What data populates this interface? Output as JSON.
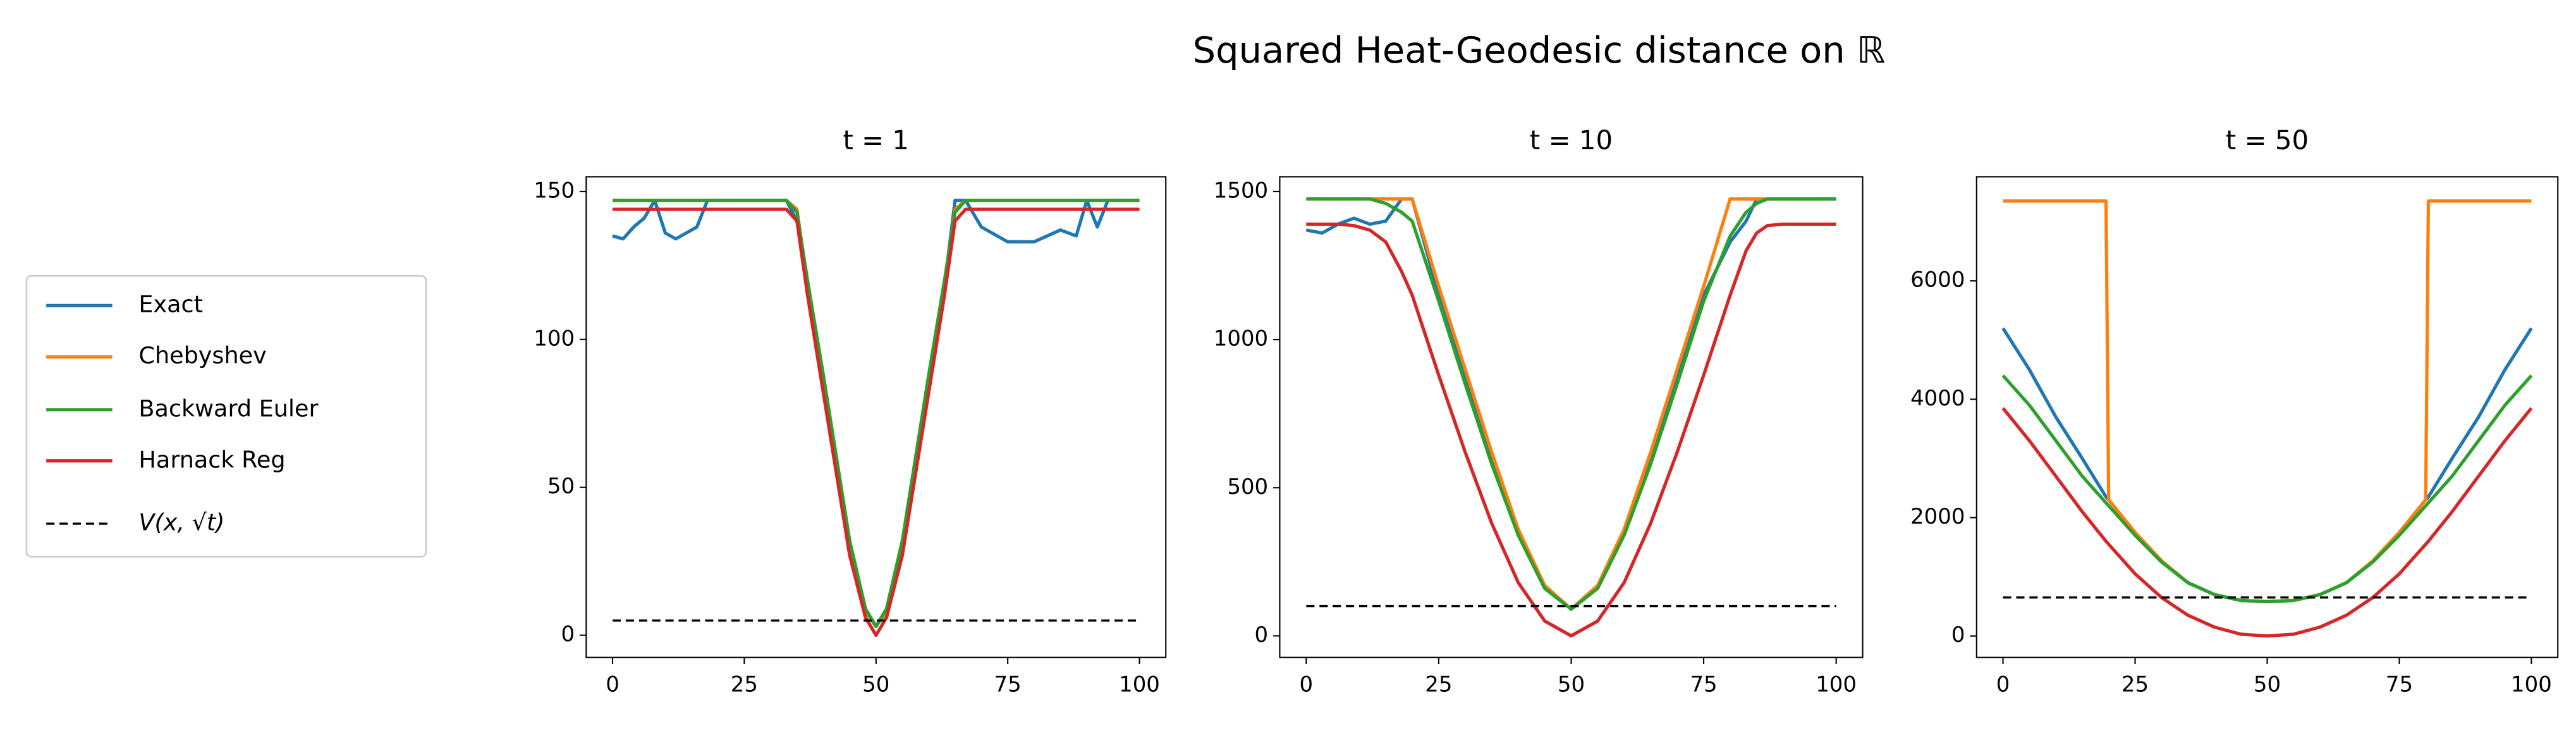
{
  "title": "Squared Heat-Geodesic distance on ℝ",
  "chart_data": [
    {
      "type": "line",
      "title": "t = 1",
      "legend": "left",
      "x": [
        0,
        2,
        4,
        6,
        8,
        10,
        12,
        14,
        16,
        18,
        25,
        33,
        35,
        37,
        40,
        45,
        48,
        50,
        52,
        55,
        60,
        63,
        65,
        67,
        70,
        75,
        80,
        85,
        88,
        90,
        92,
        94,
        96,
        98,
        100
      ],
      "xlim": [
        -5,
        105
      ],
      "xticks": [
        0,
        25,
        50,
        75,
        100
      ],
      "ylim": [
        -7.5,
        155
      ],
      "yticks": [
        0,
        50,
        100,
        150
      ],
      "series": [
        {
          "name": "Exact",
          "color": "#1f77b4",
          "values": [
            135,
            134,
            138,
            141,
            147,
            136,
            134,
            136,
            138,
            147,
            147,
            147,
            140,
            118,
            85,
            30,
            8,
            3,
            8,
            30,
            85,
            118,
            147,
            147,
            138,
            133,
            133,
            137,
            135,
            147,
            138,
            147,
            147,
            147,
            147
          ]
        },
        {
          "name": "Chebyshev",
          "color": "#ff7f0e",
          "values": [
            147,
            147,
            147,
            147,
            147,
            147,
            147,
            147,
            147,
            147,
            147,
            147,
            144,
            118,
            85,
            30,
            8,
            3,
            8,
            30,
            85,
            118,
            144,
            147,
            147,
            147,
            147,
            147,
            147,
            147,
            147,
            147,
            147,
            147,
            147
          ]
        },
        {
          "name": "Backward Euler",
          "color": "#2ca02c",
          "values": [
            147,
            147,
            147,
            147,
            147,
            147,
            147,
            147,
            147,
            147,
            147,
            147,
            143,
            120,
            88,
            32,
            9,
            3,
            9,
            32,
            88,
            120,
            143,
            147,
            147,
            147,
            147,
            147,
            147,
            147,
            147,
            147,
            147,
            147,
            147
          ]
        },
        {
          "name": "Harnack Reg",
          "color": "#d62728",
          "values": [
            144,
            144,
            144,
            144,
            144,
            144,
            144,
            144,
            144,
            144,
            144,
            144,
            140,
            115,
            82,
            27,
            6,
            0,
            6,
            27,
            82,
            115,
            140,
            144,
            144,
            144,
            144,
            144,
            144,
            144,
            144,
            144,
            144,
            144,
            144
          ]
        },
        {
          "name": "V(x, √t)",
          "color": "#000000",
          "linestyle": "dashed",
          "values": [
            5,
            5,
            5,
            5,
            5,
            5,
            5,
            5,
            5,
            5,
            5,
            5,
            5,
            5,
            5,
            5,
            5,
            5,
            5,
            5,
            5,
            5,
            5,
            5,
            5,
            5,
            5,
            5,
            5,
            5,
            5,
            5,
            5,
            5,
            5
          ]
        }
      ]
    },
    {
      "type": "line",
      "title": "t = 10",
      "x": [
        0,
        3,
        6,
        9,
        12,
        15,
        18,
        20,
        25,
        30,
        35,
        40,
        45,
        50,
        55,
        60,
        65,
        70,
        75,
        80,
        83,
        85,
        87,
        90,
        95,
        100
      ],
      "xlim": [
        -5,
        105
      ],
      "xticks": [
        0,
        25,
        50,
        75,
        100
      ],
      "ylim": [
        -73,
        1550
      ],
      "yticks": [
        0,
        500,
        1000,
        1500
      ],
      "series": [
        {
          "color": "#1f77b4",
          "values": [
            1370,
            1360,
            1390,
            1410,
            1390,
            1400,
            1475,
            1475,
            1150,
            870,
            600,
            350,
            170,
            90,
            170,
            350,
            600,
            870,
            1150,
            1330,
            1400,
            1475,
            1475,
            1475,
            1475,
            1475
          ]
        },
        {
          "color": "#ff7f0e",
          "values": [
            1475,
            1475,
            1475,
            1475,
            1475,
            1475,
            1475,
            1475,
            1180,
            900,
            620,
            360,
            170,
            90,
            170,
            360,
            620,
            900,
            1180,
            1475,
            1475,
            1475,
            1475,
            1475,
            1475,
            1475
          ]
        },
        {
          "color": "#2ca02c",
          "values": [
            1475,
            1475,
            1475,
            1475,
            1475,
            1460,
            1430,
            1400,
            1130,
            850,
            580,
            340,
            160,
            90,
            160,
            340,
            580,
            850,
            1130,
            1350,
            1430,
            1460,
            1475,
            1475,
            1475,
            1475
          ]
        },
        {
          "color": "#d62728",
          "values": [
            1390,
            1390,
            1390,
            1385,
            1370,
            1330,
            1230,
            1150,
            880,
            620,
            380,
            180,
            50,
            0,
            50,
            180,
            380,
            620,
            880,
            1150,
            1300,
            1360,
            1385,
            1390,
            1390,
            1390
          ]
        },
        {
          "color": "#000000",
          "linestyle": "dashed",
          "values": [
            100,
            100,
            100,
            100,
            100,
            100,
            100,
            100,
            100,
            100,
            100,
            100,
            100,
            100,
            100,
            100,
            100,
            100,
            100,
            100,
            100,
            100,
            100,
            100,
            100,
            100
          ]
        }
      ]
    },
    {
      "type": "line",
      "title": "t = 50",
      "x": [
        0,
        5,
        10,
        15,
        19.5,
        20,
        25,
        30,
        35,
        40,
        45,
        50,
        55,
        60,
        65,
        70,
        75,
        80,
        80.5,
        85,
        90,
        95,
        100
      ],
      "xlim": [
        -5,
        105
      ],
      "xticks": [
        0,
        25,
        50,
        75,
        100
      ],
      "ylim": [
        -363,
        7760
      ],
      "yticks": [
        0,
        2000,
        4000,
        6000
      ],
      "series": [
        {
          "color": "#1f77b4",
          "values": [
            5200,
            4500,
            3700,
            3000,
            2350,
            2300,
            1750,
            1270,
            900,
            700,
            600,
            580,
            600,
            700,
            900,
            1270,
            1750,
            2300,
            2350,
            3000,
            3700,
            4500,
            5200
          ]
        },
        {
          "color": "#ff7f0e",
          "values": [
            7350,
            7350,
            7350,
            7350,
            7350,
            2300,
            1750,
            1270,
            900,
            700,
            600,
            580,
            600,
            700,
            900,
            1270,
            1750,
            2300,
            7350,
            7350,
            7350,
            7350,
            7350
          ]
        },
        {
          "color": "#2ca02c",
          "values": [
            4400,
            3900,
            3300,
            2700,
            2250,
            2200,
            1700,
            1250,
            900,
            700,
            600,
            580,
            600,
            700,
            900,
            1250,
            1700,
            2200,
            2250,
            2700,
            3300,
            3900,
            4400
          ]
        },
        {
          "color": "#d62728",
          "values": [
            3850,
            3300,
            2700,
            2100,
            1600,
            1550,
            1050,
            650,
            350,
            150,
            30,
            0,
            30,
            150,
            350,
            650,
            1050,
            1550,
            1600,
            2100,
            2700,
            3300,
            3850
          ]
        },
        {
          "color": "#000000",
          "linestyle": "dashed",
          "values": [
            650,
            650,
            650,
            650,
            650,
            650,
            650,
            650,
            650,
            650,
            650,
            650,
            650,
            650,
            650,
            650,
            650,
            650,
            650,
            650,
            650,
            650,
            650
          ]
        }
      ]
    }
  ]
}
